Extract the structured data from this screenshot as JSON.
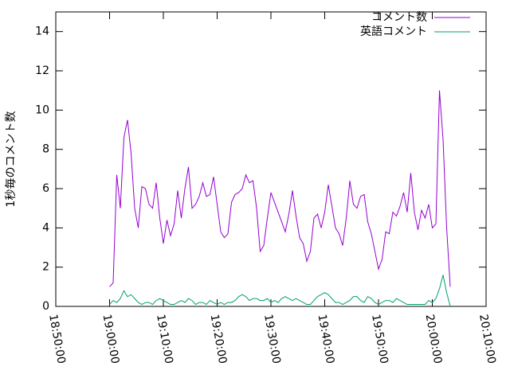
{
  "chart_data": {
    "type": "line",
    "ylabel": "1秒毎のコメント数",
    "x": [
      "19:00:00",
      "19:00:40",
      "19:01:20",
      "19:02:00",
      "19:02:40",
      "19:03:20",
      "19:04:00",
      "19:04:40",
      "19:05:20",
      "19:06:00",
      "19:06:40",
      "19:07:20",
      "19:08:00",
      "19:08:40",
      "19:09:20",
      "19:10:00",
      "19:10:40",
      "19:11:20",
      "19:12:00",
      "19:12:40",
      "19:13:20",
      "19:14:00",
      "19:14:40",
      "19:15:20",
      "19:16:00",
      "19:16:40",
      "19:17:20",
      "19:18:00",
      "19:18:40",
      "19:19:20",
      "19:20:00",
      "19:20:40",
      "19:21:20",
      "19:22:00",
      "19:22:40",
      "19:23:20",
      "19:24:00",
      "19:24:40",
      "19:25:20",
      "19:26:00",
      "19:26:40",
      "19:27:20",
      "19:28:00",
      "19:28:40",
      "19:29:20",
      "19:30:00",
      "19:30:40",
      "19:31:20",
      "19:32:00",
      "19:32:40",
      "19:33:20",
      "19:34:00",
      "19:34:40",
      "19:35:20",
      "19:36:00",
      "19:36:40",
      "19:37:20",
      "19:38:00",
      "19:38:40",
      "19:39:20",
      "19:40:00",
      "19:40:40",
      "19:41:20",
      "19:42:00",
      "19:42:40",
      "19:43:20",
      "19:44:00",
      "19:44:40",
      "19:45:20",
      "19:46:00",
      "19:46:40",
      "19:47:20",
      "19:48:00",
      "19:48:40",
      "19:49:20",
      "19:50:00",
      "19:50:40",
      "19:51:20",
      "19:52:00",
      "19:52:40",
      "19:53:20",
      "19:54:00",
      "19:54:40",
      "19:55:20",
      "19:56:00",
      "19:56:40",
      "19:57:20",
      "19:58:00",
      "19:58:40",
      "19:59:20",
      "20:00:00",
      "20:00:40",
      "20:01:20",
      "20:02:00",
      "20:02:40",
      "20:03:20"
    ],
    "series": [
      {
        "name": "コメント数",
        "color": "#9400d3",
        "values": [
          1.0,
          1.2,
          6.7,
          5.0,
          8.6,
          9.5,
          7.8,
          5.0,
          4.0,
          6.1,
          6.0,
          5.2,
          5.0,
          6.3,
          4.5,
          3.2,
          4.4,
          3.6,
          4.2,
          5.9,
          4.5,
          6.0,
          7.1,
          5.0,
          5.2,
          5.6,
          6.3,
          5.6,
          5.7,
          6.6,
          5.2,
          3.8,
          3.5,
          3.7,
          5.3,
          5.7,
          5.8,
          6.0,
          6.7,
          6.3,
          6.4,
          5.0,
          2.8,
          3.1,
          4.5,
          5.8,
          5.3,
          4.8,
          4.3,
          3.8,
          4.7,
          5.9,
          4.6,
          3.5,
          3.2,
          2.3,
          2.8,
          4.5,
          4.7,
          4.0,
          4.8,
          6.2,
          5.1,
          4.0,
          3.7,
          3.1,
          4.5,
          6.4,
          5.2,
          5.0,
          5.6,
          5.7,
          4.3,
          3.7,
          2.8,
          1.9,
          2.4,
          3.8,
          3.7,
          4.8,
          4.6,
          5.1,
          5.8,
          4.8,
          6.8,
          4.8,
          3.9,
          4.9,
          4.5,
          5.2,
          4.0,
          4.2,
          11.0,
          8.5,
          4.0,
          1.0
        ]
      },
      {
        "name": "英語コメント",
        "color": "#009e73",
        "values": [
          0.1,
          0.3,
          0.2,
          0.4,
          0.8,
          0.5,
          0.6,
          0.4,
          0.2,
          0.1,
          0.2,
          0.2,
          0.1,
          0.3,
          0.4,
          0.3,
          0.2,
          0.1,
          0.1,
          0.2,
          0.3,
          0.2,
          0.4,
          0.3,
          0.1,
          0.2,
          0.2,
          0.1,
          0.3,
          0.2,
          0.1,
          0.2,
          0.1,
          0.2,
          0.2,
          0.3,
          0.5,
          0.6,
          0.5,
          0.3,
          0.4,
          0.4,
          0.3,
          0.3,
          0.4,
          0.2,
          0.3,
          0.2,
          0.4,
          0.5,
          0.4,
          0.3,
          0.4,
          0.3,
          0.2,
          0.1,
          0.1,
          0.3,
          0.5,
          0.6,
          0.7,
          0.6,
          0.4,
          0.2,
          0.2,
          0.1,
          0.2,
          0.3,
          0.5,
          0.5,
          0.3,
          0.2,
          0.5,
          0.4,
          0.2,
          0.1,
          0.2,
          0.3,
          0.3,
          0.2,
          0.4,
          0.3,
          0.2,
          0.1,
          0.1,
          0.1,
          0.1,
          0.1,
          0.1,
          0.3,
          0.2,
          0.4,
          0.9,
          1.6,
          0.7,
          0.0
        ]
      }
    ],
    "xlim": [
      "18:50:00",
      "20:10:00"
    ],
    "xticks": [
      "18:50:00",
      "19:00:00",
      "19:10:00",
      "19:20:00",
      "19:30:00",
      "19:40:00",
      "19:50:00",
      "20:00:00",
      "20:10:00"
    ],
    "ylim": [
      0,
      15
    ],
    "yticks": [
      0,
      2,
      4,
      6,
      8,
      10,
      12,
      14
    ],
    "legend": "top-right"
  }
}
